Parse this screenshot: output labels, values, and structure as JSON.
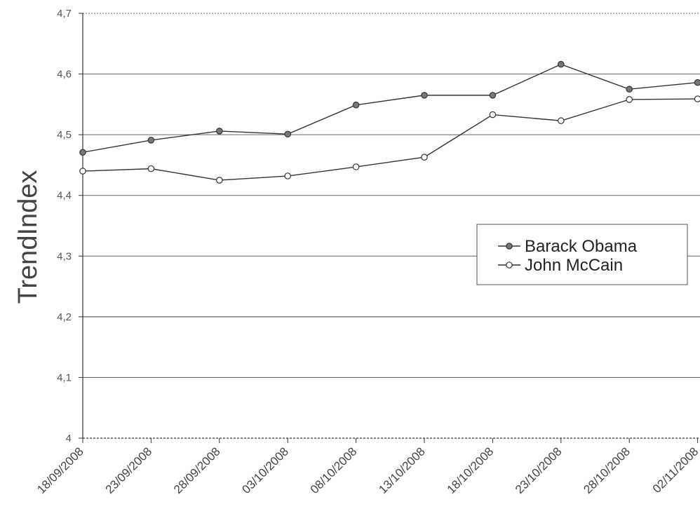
{
  "chart_data": {
    "type": "line",
    "title": "",
    "xlabel": "",
    "ylabel": "TrendIndex",
    "categories": [
      "18/09/2008",
      "23/09/2008",
      "28/09/2008",
      "03/10/2008",
      "08/10/2008",
      "13/10/2008",
      "18/10/2008",
      "23/10/2008",
      "28/10/2008",
      "02/11/2008"
    ],
    "yticks": [
      "4",
      "4,1",
      "4,2",
      "4,3",
      "4,4",
      "4,5",
      "4,6",
      "4,7"
    ],
    "ylim": [
      4,
      4.7
    ],
    "grid": true,
    "legend_position": "right",
    "series": [
      {
        "name": "Barack Obama",
        "marker": "filled",
        "values": [
          4.471,
          4.491,
          4.506,
          4.501,
          4.549,
          4.565,
          4.565,
          4.616,
          4.575,
          4.586
        ]
      },
      {
        "name": "John McCain",
        "marker": "open",
        "values": [
          4.44,
          4.444,
          4.425,
          4.432,
          4.447,
          4.463,
          4.533,
          4.523,
          4.558,
          4.559
        ]
      }
    ],
    "colors": {
      "line": "#333333",
      "grid": "#666666",
      "filled_marker": "#777777"
    }
  }
}
